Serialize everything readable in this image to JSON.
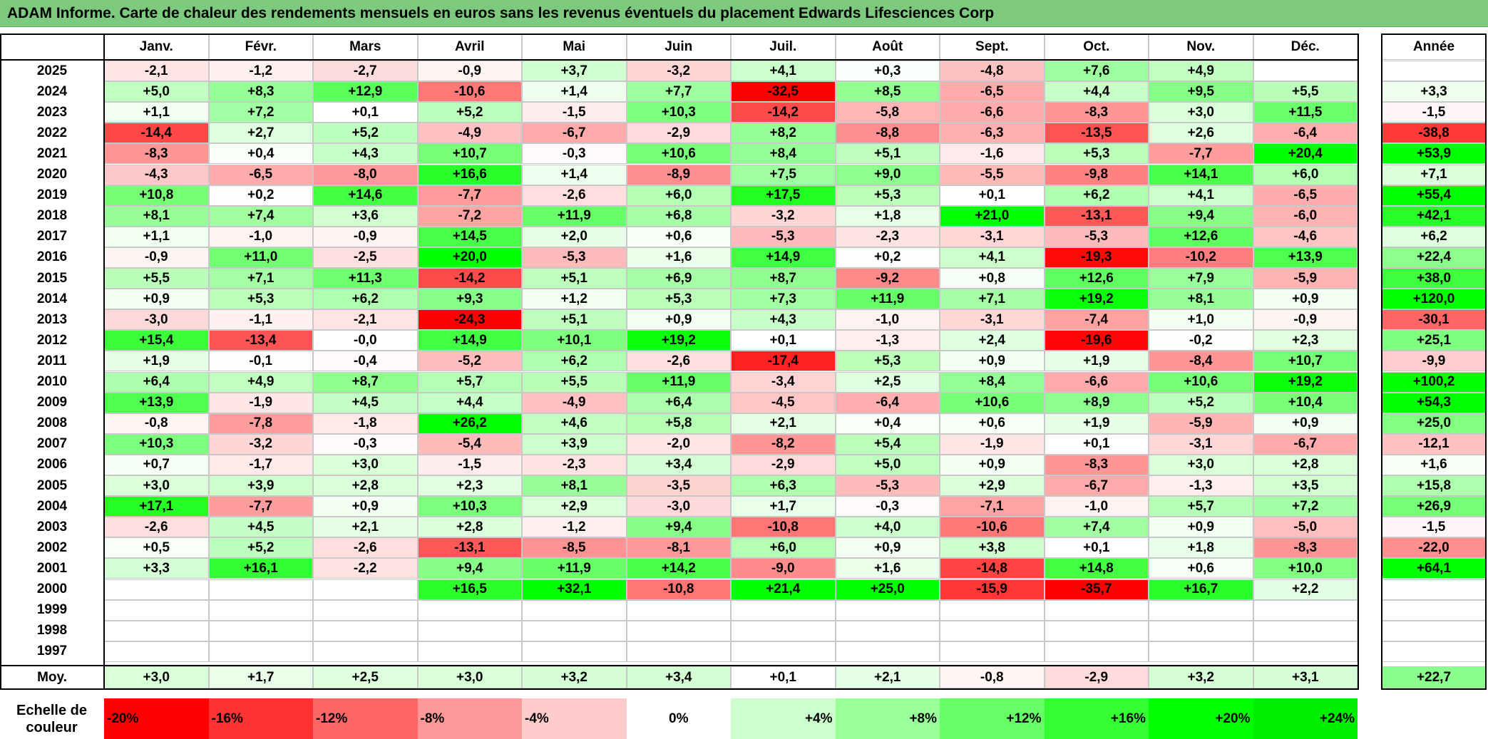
{
  "title": "ADAM Informe. Carte de chaleur des rendements mensuels en euros sans les revenus éventuels du placement Edwards Lifesciences Corp",
  "chart_data": {
    "type": "heatmap",
    "title": "ADAM Informe. Carte de chaleur des rendements mensuels en euros sans les revenus éventuels du placement Edwards Lifesciences Corp",
    "columns": [
      "Janv.",
      "Févr.",
      "Mars",
      "Avril",
      "Mai",
      "Juin",
      "Juil.",
      "Août",
      "Sept.",
      "Oct.",
      "Nov.",
      "Déc."
    ],
    "year_column_label": "Année",
    "rows": [
      {
        "year": "2025",
        "months": [
          "-2,1",
          "-1,2",
          "-2,7",
          "-0,9",
          "+3,7",
          "-3,2",
          "+4,1",
          "+0,3",
          "-4,8",
          "+7,6",
          "+4,9",
          ""
        ],
        "annual": ""
      },
      {
        "year": "2024",
        "months": [
          "+5,0",
          "+8,3",
          "+12,9",
          "-10,6",
          "+1,4",
          "+7,7",
          "-32,5",
          "+8,5",
          "-6,5",
          "+4,4",
          "+9,5",
          "+5,5"
        ],
        "annual": "+3,3"
      },
      {
        "year": "2023",
        "months": [
          "+1,1",
          "+7,2",
          "+0,1",
          "+5,2",
          "-1,5",
          "+10,3",
          "-14,2",
          "-5,8",
          "-6,6",
          "-8,3",
          "+3,0",
          "+11,5"
        ],
        "annual": "-1,5"
      },
      {
        "year": "2022",
        "months": [
          "-14,4",
          "+2,7",
          "+5,2",
          "-4,9",
          "-6,7",
          "-2,9",
          "+8,2",
          "-8,8",
          "-6,3",
          "-13,5",
          "+2,6",
          "-6,4"
        ],
        "annual": "-38,8"
      },
      {
        "year": "2021",
        "months": [
          "-8,3",
          "+0,4",
          "+4,3",
          "+10,7",
          "-0,3",
          "+10,6",
          "+8,4",
          "+5,1",
          "-1,6",
          "+5,3",
          "-7,7",
          "+20,4"
        ],
        "annual": "+53,9"
      },
      {
        "year": "2020",
        "months": [
          "-4,3",
          "-6,5",
          "-8,0",
          "+16,6",
          "+1,4",
          "-8,9",
          "+7,5",
          "+9,0",
          "-5,5",
          "-9,8",
          "+14,1",
          "+6,0"
        ],
        "annual": "+7,1"
      },
      {
        "year": "2019",
        "months": [
          "+10,8",
          "+0,2",
          "+14,6",
          "-7,7",
          "-2,6",
          "+6,0",
          "+17,5",
          "+5,3",
          "+0,1",
          "+6,2",
          "+4,1",
          "-6,5"
        ],
        "annual": "+55,4"
      },
      {
        "year": "2018",
        "months": [
          "+8,1",
          "+7,4",
          "+3,6",
          "-7,2",
          "+11,9",
          "+6,8",
          "-3,2",
          "+1,8",
          "+21,0",
          "-13,1",
          "+9,4",
          "-6,0"
        ],
        "annual": "+42,1"
      },
      {
        "year": "2017",
        "months": [
          "+1,1",
          "-1,0",
          "-0,9",
          "+14,5",
          "+2,0",
          "+0,6",
          "-5,3",
          "-2,3",
          "-3,1",
          "-5,3",
          "+12,6",
          "-4,6"
        ],
        "annual": "+6,2"
      },
      {
        "year": "2016",
        "months": [
          "-0,9",
          "+11,0",
          "-2,5",
          "+20,0",
          "-5,3",
          "+1,6",
          "+14,9",
          "+0,2",
          "+4,1",
          "-19,3",
          "-10,2",
          "+13,9"
        ],
        "annual": "+22,4"
      },
      {
        "year": "2015",
        "months": [
          "+5,5",
          "+7,1",
          "+11,3",
          "-14,2",
          "+5,1",
          "+6,9",
          "+8,7",
          "-9,2",
          "+0,8",
          "+12,6",
          "+7,9",
          "-5,9"
        ],
        "annual": "+38,0"
      },
      {
        "year": "2014",
        "months": [
          "+0,9",
          "+5,3",
          "+6,2",
          "+9,3",
          "+1,2",
          "+5,3",
          "+7,3",
          "+11,9",
          "+7,1",
          "+19,2",
          "+8,1",
          "+0,9"
        ],
        "annual": "+120,0"
      },
      {
        "year": "2013",
        "months": [
          "-3,0",
          "-1,1",
          "-2,1",
          "-24,3",
          "+5,1",
          "+0,9",
          "+4,3",
          "-1,0",
          "-3,1",
          "-7,4",
          "+1,0",
          "-0,9"
        ],
        "annual": "-30,1"
      },
      {
        "year": "2012",
        "months": [
          "+15,4",
          "-13,4",
          "-0,0",
          "+14,9",
          "+10,1",
          "+19,2",
          "+0,1",
          "-1,3",
          "+2,4",
          "-19,6",
          "-0,2",
          "+2,3"
        ],
        "annual": "+25,1"
      },
      {
        "year": "2011",
        "months": [
          "+1,9",
          "-0,1",
          "-0,4",
          "-5,2",
          "+6,2",
          "-2,6",
          "-17,4",
          "+5,3",
          "+0,9",
          "+1,9",
          "-8,4",
          "+10,7"
        ],
        "annual": "-9,9"
      },
      {
        "year": "2010",
        "months": [
          "+6,4",
          "+4,9",
          "+8,7",
          "+5,7",
          "+5,5",
          "+11,9",
          "-3,4",
          "+2,5",
          "+8,4",
          "-6,6",
          "+10,6",
          "+19,2"
        ],
        "annual": "+100,2"
      },
      {
        "year": "2009",
        "months": [
          "+13,9",
          "-1,9",
          "+4,5",
          "+4,4",
          "-4,9",
          "+6,4",
          "-4,5",
          "-6,4",
          "+10,6",
          "+8,9",
          "+5,2",
          "+10,4"
        ],
        "annual": "+54,3"
      },
      {
        "year": "2008",
        "months": [
          "-0,8",
          "-7,8",
          "-1,8",
          "+26,2",
          "+4,6",
          "+5,8",
          "+2,1",
          "+0,4",
          "+0,6",
          "+1,9",
          "-5,9",
          "+0,9"
        ],
        "annual": "+25,0"
      },
      {
        "year": "2007",
        "months": [
          "+10,3",
          "-3,2",
          "-0,3",
          "-5,4",
          "+3,9",
          "-2,0",
          "-8,2",
          "+5,4",
          "-1,9",
          "+0,1",
          "-3,1",
          "-6,7"
        ],
        "annual": "-12,1"
      },
      {
        "year": "2006",
        "months": [
          "+0,7",
          "-1,7",
          "+3,0",
          "-1,5",
          "-2,3",
          "+3,4",
          "-2,9",
          "+5,0",
          "+0,9",
          "-8,3",
          "+3,0",
          "+2,8"
        ],
        "annual": "+1,6"
      },
      {
        "year": "2005",
        "months": [
          "+3,0",
          "+3,9",
          "+2,8",
          "+2,3",
          "+8,1",
          "-3,5",
          "+6,3",
          "-5,3",
          "+2,9",
          "-6,7",
          "-1,3",
          "+3,5"
        ],
        "annual": "+15,8"
      },
      {
        "year": "2004",
        "months": [
          "+17,1",
          "-7,7",
          "+0,9",
          "+10,3",
          "+2,9",
          "-3,0",
          "+1,7",
          "-0,3",
          "-7,1",
          "-1,0",
          "+5,7",
          "+7,2"
        ],
        "annual": "+26,9"
      },
      {
        "year": "2003",
        "months": [
          "-2,6",
          "+4,5",
          "+2,1",
          "+2,8",
          "-1,2",
          "+9,4",
          "-10,8",
          "+4,0",
          "-10,6",
          "+7,4",
          "+0,9",
          "-5,0"
        ],
        "annual": "-1,5"
      },
      {
        "year": "2002",
        "months": [
          "+0,5",
          "+5,2",
          "-2,6",
          "-13,1",
          "-8,5",
          "-8,1",
          "+6,0",
          "+0,9",
          "+3,8",
          "+0,1",
          "+1,8",
          "-8,3"
        ],
        "annual": "-22,0"
      },
      {
        "year": "2001",
        "months": [
          "+3,3",
          "+16,1",
          "-2,2",
          "+9,4",
          "+11,9",
          "+14,2",
          "-9,0",
          "+1,6",
          "-14,8",
          "+14,8",
          "+0,6",
          "+10,0"
        ],
        "annual": "+64,1"
      },
      {
        "year": "2000",
        "months": [
          "",
          "",
          "",
          "+16,5",
          "+32,1",
          "-10,8",
          "+21,4",
          "+25,0",
          "-15,9",
          "-35,7",
          "+16,7",
          "+2,2"
        ],
        "annual": ""
      },
      {
        "year": "1999",
        "months": [
          "",
          "",
          "",
          "",
          "",
          "",
          "",
          "",
          "",
          "",
          "",
          ""
        ],
        "annual": ""
      },
      {
        "year": "1998",
        "months": [
          "",
          "",
          "",
          "",
          "",
          "",
          "",
          "",
          "",
          "",
          "",
          ""
        ],
        "annual": ""
      },
      {
        "year": "1997",
        "months": [
          "",
          "",
          "",
          "",
          "",
          "",
          "",
          "",
          "",
          "",
          "",
          ""
        ],
        "annual": ""
      }
    ],
    "average": {
      "label": "Moy.",
      "months": [
        "+3,0",
        "+1,7",
        "+2,5",
        "+3,0",
        "+3,2",
        "+3,4",
        "+0,1",
        "+2,1",
        "-0,8",
        "-2,9",
        "+3,2",
        "+3,1"
      ],
      "annual": "+22,7"
    },
    "scale": {
      "label_line1": "Echelle de",
      "label_line2": "couleur",
      "stops": [
        {
          "label": "-20%",
          "value": -20,
          "color": "#ff0000"
        },
        {
          "label": "-16%",
          "value": -16,
          "color": "#ff3333"
        },
        {
          "label": "-12%",
          "value": -12,
          "color": "#ff6666"
        },
        {
          "label": "-8%",
          "value": -8,
          "color": "#ff9999"
        },
        {
          "label": "-4%",
          "value": -4,
          "color": "#ffcccc"
        },
        {
          "label": "0%",
          "value": 0,
          "color": "#ffffff"
        },
        {
          "label": "+4%",
          "value": 4,
          "color": "#ccffcc"
        },
        {
          "label": "+8%",
          "value": 8,
          "color": "#99ff99"
        },
        {
          "label": "+12%",
          "value": 12,
          "color": "#66ff66"
        },
        {
          "label": "+16%",
          "value": 16,
          "color": "#33ff33"
        },
        {
          "label": "+20%",
          "value": 20,
          "color": "#00ff00"
        },
        {
          "label": "+24%",
          "value": 24,
          "color": "#00ee00"
        }
      ]
    }
  }
}
